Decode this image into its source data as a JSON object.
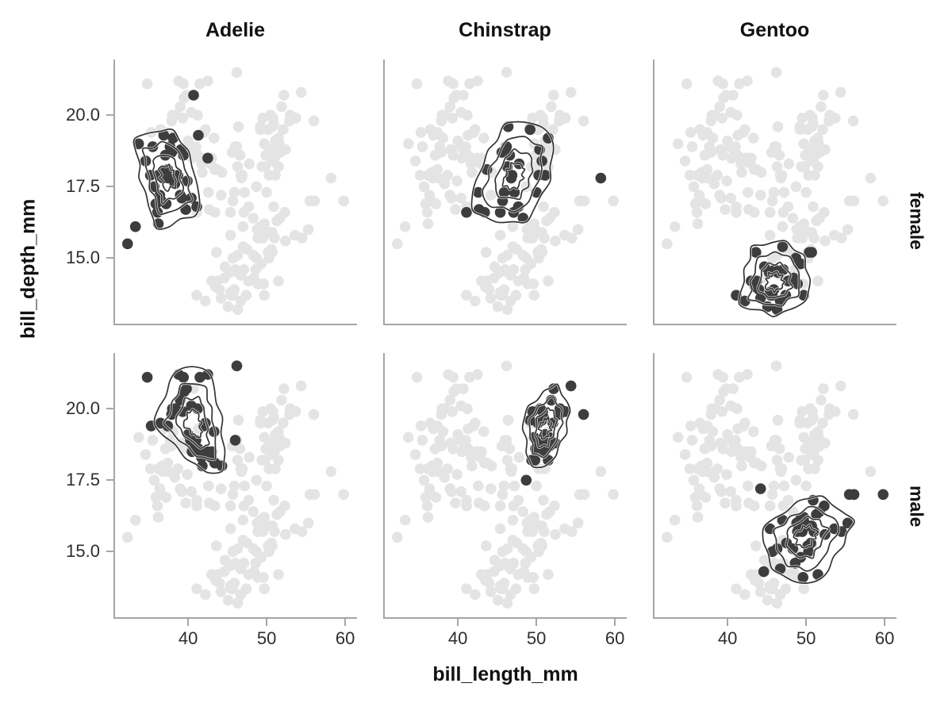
{
  "colors": {
    "background_point": "#e4e4e4",
    "highlight_point": "#3d3d3d",
    "contour": "#333333",
    "contour_halo": "#ffffff",
    "spine": "#a6a6a6",
    "tick_label": "#2e2e2e",
    "text": "#111111"
  },
  "chart_data": {
    "type": "scatter",
    "title": "",
    "xlabel": "bill_length_mm",
    "ylabel": "bill_depth_mm",
    "facet": {
      "cols": [
        "Adelie",
        "Chinstrap",
        "Gentoo"
      ],
      "rows": [
        "female",
        "male"
      ]
    },
    "xlim": [
      30.5,
      61.5
    ],
    "ylim": [
      12.65,
      21.95
    ],
    "x_ticks": [
      40,
      50,
      60
    ],
    "y_ticks": [
      20.0,
      17.5,
      15.0
    ],
    "x_tick_labels": [
      "40",
      "50",
      "60"
    ],
    "y_tick_labels": [
      "20.0",
      "17.5",
      "15.0"
    ],
    "grid": false,
    "legend": "none",
    "background_points": "all penguins shown light gray in every panel; facet subset overplotted dark with density contours",
    "series": [
      {
        "species": "Adelie",
        "sex": "female",
        "points": [
          [
            32.1,
            15.5
          ],
          [
            33.1,
            16.1
          ],
          [
            33.5,
            19.0
          ],
          [
            34.4,
            18.4
          ],
          [
            35.0,
            17.9
          ],
          [
            35.3,
            18.9
          ],
          [
            35.5,
            17.5
          ],
          [
            35.7,
            16.9
          ],
          [
            35.9,
            16.6
          ],
          [
            36.0,
            17.9
          ],
          [
            36.0,
            16.2
          ],
          [
            36.2,
            17.2
          ],
          [
            36.4,
            17.0
          ],
          [
            36.5,
            18.0
          ],
          [
            36.6,
            17.8
          ],
          [
            36.7,
            19.3
          ],
          [
            36.9,
            18.6
          ],
          [
            37.0,
            16.9
          ],
          [
            37.2,
            18.1
          ],
          [
            37.3,
            17.8
          ],
          [
            37.5,
            18.9
          ],
          [
            37.7,
            18.7
          ],
          [
            37.9,
            19.2
          ],
          [
            38.1,
            17.6
          ],
          [
            38.5,
            17.9
          ],
          [
            38.8,
            17.2
          ],
          [
            38.9,
            18.8
          ],
          [
            39.0,
            17.1
          ],
          [
            39.2,
            18.6
          ],
          [
            39.5,
            16.7
          ],
          [
            39.7,
            17.7
          ],
          [
            40.2,
            17.1
          ],
          [
            40.5,
            20.7
          ],
          [
            40.9,
            16.8
          ],
          [
            41.1,
            19.3
          ],
          [
            42.3,
            18.5
          ]
        ]
      },
      {
        "species": "Adelie",
        "sex": "male",
        "points": [
          [
            34.6,
            21.1
          ],
          [
            35.1,
            19.4
          ],
          [
            36.3,
            19.5
          ],
          [
            37.2,
            19.4
          ],
          [
            37.7,
            19.8
          ],
          [
            37.8,
            20.0
          ],
          [
            38.2,
            20.0
          ],
          [
            38.6,
            21.2
          ],
          [
            38.8,
            20.3
          ],
          [
            39.1,
            19.9
          ],
          [
            39.2,
            21.1
          ],
          [
            39.3,
            20.6
          ],
          [
            39.6,
            20.7
          ],
          [
            39.8,
            19.1
          ],
          [
            40.1,
            18.9
          ],
          [
            40.2,
            20.1
          ],
          [
            40.3,
            18.5
          ],
          [
            40.6,
            18.6
          ],
          [
            40.8,
            18.9
          ],
          [
            41.0,
            20.0
          ],
          [
            41.1,
            18.6
          ],
          [
            41.3,
            21.1
          ],
          [
            41.4,
            18.5
          ],
          [
            41.5,
            18.3
          ],
          [
            41.6,
            18.0
          ],
          [
            41.8,
            19.4
          ],
          [
            42.0,
            19.5
          ],
          [
            42.2,
            18.5
          ],
          [
            42.3,
            21.2
          ],
          [
            42.7,
            18.3
          ],
          [
            42.8,
            18.5
          ],
          [
            43.1,
            19.2
          ],
          [
            43.2,
            18.1
          ],
          [
            44.1,
            18.0
          ],
          [
            45.8,
            18.9
          ],
          [
            46.0,
            21.5
          ]
        ]
      },
      {
        "species": "Chinstrap",
        "sex": "female",
        "points": [
          [
            40.9,
            16.6
          ],
          [
            42.4,
            17.3
          ],
          [
            42.5,
            16.7
          ],
          [
            43.2,
            16.6
          ],
          [
            43.5,
            18.1
          ],
          [
            45.2,
            16.6
          ],
          [
            45.4,
            18.7
          ],
          [
            45.5,
            17.0
          ],
          [
            45.7,
            17.3
          ],
          [
            46.0,
            18.9
          ],
          [
            46.1,
            18.2
          ],
          [
            46.2,
            19.6
          ],
          [
            46.4,
            18.6
          ],
          [
            46.5,
            17.9
          ],
          [
            46.6,
            17.8
          ],
          [
            46.7,
            17.9
          ],
          [
            46.9,
            16.6
          ],
          [
            47.0,
            17.3
          ],
          [
            47.5,
            16.8
          ],
          [
            47.6,
            18.3
          ],
          [
            48.1,
            16.4
          ],
          [
            49.0,
            19.5
          ],
          [
            49.8,
            17.3
          ],
          [
            50.1,
            17.9
          ],
          [
            50.2,
            18.8
          ],
          [
            50.5,
            18.4
          ],
          [
            50.9,
            17.9
          ],
          [
            51.3,
            19.2
          ],
          [
            58.0,
            17.8
          ]
        ]
      },
      {
        "species": "Chinstrap",
        "sex": "male",
        "points": [
          [
            48.5,
            17.5
          ],
          [
            49.0,
            19.6
          ],
          [
            49.2,
            18.2
          ],
          [
            49.3,
            19.9
          ],
          [
            49.5,
            19.0
          ],
          [
            49.6,
            18.2
          ],
          [
            49.7,
            18.6
          ],
          [
            50.0,
            19.5
          ],
          [
            50.2,
            18.8
          ],
          [
            50.3,
            20.0
          ],
          [
            50.5,
            19.6
          ],
          [
            50.6,
            19.9
          ],
          [
            50.7,
            19.7
          ],
          [
            50.8,
            18.5
          ],
          [
            50.9,
            19.1
          ],
          [
            51.0,
            18.8
          ],
          [
            51.3,
            18.2
          ],
          [
            51.4,
            19.0
          ],
          [
            51.5,
            18.7
          ],
          [
            51.7,
            20.3
          ],
          [
            51.9,
            19.5
          ],
          [
            52.0,
            20.7
          ],
          [
            52.2,
            18.8
          ],
          [
            52.7,
            19.8
          ],
          [
            52.8,
            20.0
          ],
          [
            53.5,
            19.9
          ],
          [
            54.2,
            20.8
          ],
          [
            55.8,
            19.8
          ]
        ]
      },
      {
        "species": "Gentoo",
        "sex": "female",
        "points": [
          [
            40.9,
            13.7
          ],
          [
            42.0,
            13.5
          ],
          [
            42.8,
            14.2
          ],
          [
            43.3,
            14.0
          ],
          [
            43.4,
            15.2
          ],
          [
            43.5,
            14.2
          ],
          [
            43.8,
            13.9
          ],
          [
            44.0,
            13.6
          ],
          [
            44.5,
            14.7
          ],
          [
            44.9,
            13.3
          ],
          [
            45.1,
            14.5
          ],
          [
            45.2,
            13.8
          ],
          [
            45.3,
            13.7
          ],
          [
            45.5,
            13.7
          ],
          [
            45.7,
            13.9
          ],
          [
            45.8,
            14.6
          ],
          [
            46.1,
            13.2
          ],
          [
            46.2,
            14.5
          ],
          [
            46.5,
            13.5
          ],
          [
            46.8,
            15.4
          ],
          [
            46.9,
            14.6
          ],
          [
            47.2,
            13.7
          ],
          [
            47.5,
            14.2
          ],
          [
            48.2,
            14.3
          ],
          [
            48.5,
            15.0
          ],
          [
            48.7,
            14.1
          ],
          [
            49.1,
            14.8
          ],
          [
            49.5,
            13.7
          ],
          [
            50.2,
            15.2
          ],
          [
            50.5,
            15.2
          ]
        ]
      },
      {
        "species": "Gentoo",
        "sex": "male",
        "points": [
          [
            44.0,
            17.2
          ],
          [
            44.4,
            14.3
          ],
          [
            45.2,
            15.8
          ],
          [
            45.5,
            15.0
          ],
          [
            46.1,
            15.1
          ],
          [
            46.5,
            14.4
          ],
          [
            46.8,
            16.1
          ],
          [
            47.3,
            15.3
          ],
          [
            48.1,
            15.1
          ],
          [
            48.4,
            14.6
          ],
          [
            48.6,
            16.0
          ],
          [
            48.7,
            15.7
          ],
          [
            49.0,
            16.1
          ],
          [
            49.1,
            14.8
          ],
          [
            49.3,
            15.7
          ],
          [
            49.4,
            14.1
          ],
          [
            49.5,
            16.2
          ],
          [
            49.6,
            16.0
          ],
          [
            49.8,
            15.9
          ],
          [
            50.0,
            15.2
          ],
          [
            50.1,
            15.0
          ],
          [
            50.4,
            15.3
          ],
          [
            50.5,
            15.9
          ],
          [
            50.7,
            16.8
          ],
          [
            50.8,
            15.7
          ],
          [
            51.1,
            16.3
          ],
          [
            51.3,
            14.2
          ],
          [
            51.5,
            16.4
          ],
          [
            52.1,
            16.6
          ],
          [
            52.2,
            15.6
          ],
          [
            53.4,
            15.8
          ],
          [
            54.3,
            15.7
          ],
          [
            55.1,
            16.0
          ],
          [
            55.3,
            17.0
          ],
          [
            55.9,
            17.0
          ],
          [
            59.6,
            17.0
          ]
        ]
      }
    ]
  }
}
